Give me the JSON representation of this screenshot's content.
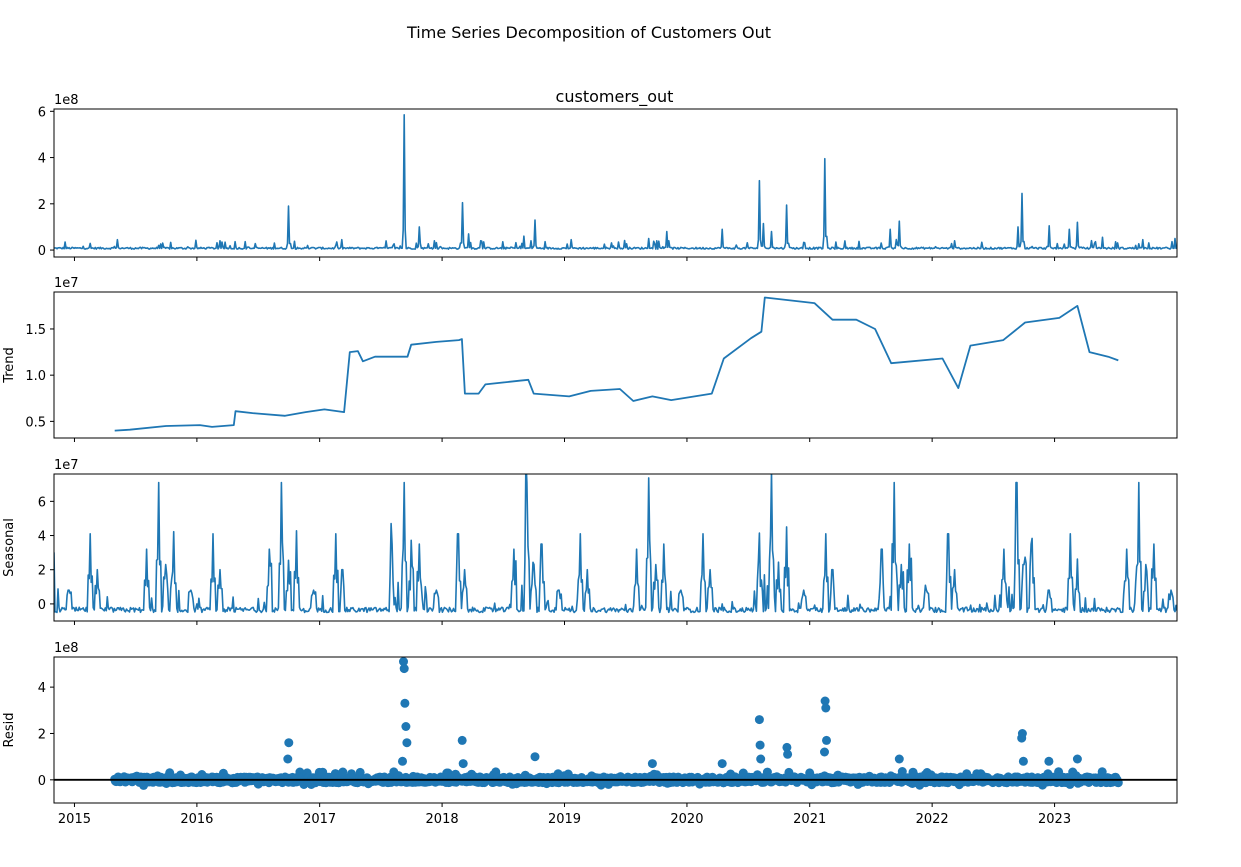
{
  "figure": {
    "suptitle": "Time Series Decomposition of Customers Out"
  },
  "colors": {
    "line": "#1f77b4",
    "axis": "#000000",
    "zero_line": "#000000"
  },
  "chart_data": [
    {
      "type": "line",
      "name": "observed",
      "title": "customers_out",
      "ylabel": "",
      "offset_text": "1e8",
      "scale": 100000000,
      "yticks": [
        0,
        2,
        4,
        6
      ],
      "ylim": [
        -0.3,
        6.1
      ],
      "xlim": [
        "2014-11-01",
        "2024-01-01"
      ],
      "x_start": "2014-11-01",
      "x_end": "2024-01-01",
      "base": 0.04,
      "noise": 0.08,
      "spikes": [
        {
          "x": "2014-12-05",
          "y": 0.35
        },
        {
          "x": "2015-05-10",
          "y": 0.45
        },
        {
          "x": "2015-09-20",
          "y": 0.3
        },
        {
          "x": "2016-03-15",
          "y": 0.35
        },
        {
          "x": "2016-08-20",
          "y": 0.3
        },
        {
          "x": "2016-10-01",
          "y": 1.9
        },
        {
          "x": "2017-02-20",
          "y": 0.35
        },
        {
          "x": "2017-09-10",
          "y": 5.85
        },
        {
          "x": "2017-10-25",
          "y": 1.0
        },
        {
          "x": "2017-12-10",
          "y": 0.4
        },
        {
          "x": "2018-03-02",
          "y": 2.05
        },
        {
          "x": "2018-03-20",
          "y": 0.7
        },
        {
          "x": "2018-04-25",
          "y": 0.4
        },
        {
          "x": "2018-09-01",
          "y": 0.6
        },
        {
          "x": "2018-10-05",
          "y": 1.3
        },
        {
          "x": "2019-01-20",
          "y": 0.45
        },
        {
          "x": "2019-06-10",
          "y": 0.35
        },
        {
          "x": "2019-09-10",
          "y": 0.5
        },
        {
          "x": "2019-11-01",
          "y": 0.8
        },
        {
          "x": "2020-04-15",
          "y": 0.9
        },
        {
          "x": "2020-08-04",
          "y": 3.0
        },
        {
          "x": "2020-08-15",
          "y": 1.15
        },
        {
          "x": "2020-09-10",
          "y": 0.8
        },
        {
          "x": "2020-10-25",
          "y": 1.95
        },
        {
          "x": "2021-02-16",
          "y": 3.95
        },
        {
          "x": "2021-08-28",
          "y": 0.9
        },
        {
          "x": "2021-09-25",
          "y": 1.25
        },
        {
          "x": "2022-03-10",
          "y": 0.4
        },
        {
          "x": "2022-09-27",
          "y": 2.45
        },
        {
          "x": "2022-09-15",
          "y": 1.0
        },
        {
          "x": "2022-12-15",
          "y": 1.05
        },
        {
          "x": "2023-02-15",
          "y": 0.9
        },
        {
          "x": "2023-03-10",
          "y": 1.2
        },
        {
          "x": "2023-05-25",
          "y": 0.55
        },
        {
          "x": "2023-12-25",
          "y": 0.5
        }
      ]
    },
    {
      "type": "line",
      "name": "trend",
      "title": "",
      "ylabel": "Trend",
      "offset_text": "1e7",
      "scale": 10000000,
      "yticks": [
        0.5,
        1.0,
        1.5
      ],
      "ytick_labels": [
        "0.5",
        "1.0",
        "1.5"
      ],
      "ylim": [
        0.32,
        1.9
      ],
      "xlim": [
        "2014-11-01",
        "2024-01-01"
      ],
      "points": [
        {
          "x": "2015-05-01",
          "y": 0.4
        },
        {
          "x": "2015-06-15",
          "y": 0.41
        },
        {
          "x": "2015-10-01",
          "y": 0.45
        },
        {
          "x": "2016-01-10",
          "y": 0.46
        },
        {
          "x": "2016-02-15",
          "y": 0.44
        },
        {
          "x": "2016-04-20",
          "y": 0.46
        },
        {
          "x": "2016-04-25",
          "y": 0.61
        },
        {
          "x": "2016-06-15",
          "y": 0.59
        },
        {
          "x": "2016-09-20",
          "y": 0.56
        },
        {
          "x": "2016-11-20",
          "y": 0.6
        },
        {
          "x": "2017-01-15",
          "y": 0.63
        },
        {
          "x": "2017-03-15",
          "y": 0.6
        },
        {
          "x": "2017-04-01",
          "y": 1.25
        },
        {
          "x": "2017-04-25",
          "y": 1.26
        },
        {
          "x": "2017-05-10",
          "y": 1.15
        },
        {
          "x": "2017-06-15",
          "y": 1.2
        },
        {
          "x": "2017-09-20",
          "y": 1.2
        },
        {
          "x": "2017-10-01",
          "y": 1.33
        },
        {
          "x": "2017-12-15",
          "y": 1.36
        },
        {
          "x": "2018-02-20",
          "y": 1.38
        },
        {
          "x": "2018-03-01",
          "y": 1.39
        },
        {
          "x": "2018-03-10",
          "y": 0.8
        },
        {
          "x": "2018-04-20",
          "y": 0.8
        },
        {
          "x": "2018-05-10",
          "y": 0.9
        },
        {
          "x": "2018-08-20",
          "y": 0.94
        },
        {
          "x": "2018-09-15",
          "y": 0.95
        },
        {
          "x": "2018-10-01",
          "y": 0.8
        },
        {
          "x": "2019-01-15",
          "y": 0.77
        },
        {
          "x": "2019-03-20",
          "y": 0.83
        },
        {
          "x": "2019-06-15",
          "y": 0.85
        },
        {
          "x": "2019-07-25",
          "y": 0.72
        },
        {
          "x": "2019-09-20",
          "y": 0.77
        },
        {
          "x": "2019-11-15",
          "y": 0.73
        },
        {
          "x": "2020-03-15",
          "y": 0.8
        },
        {
          "x": "2020-04-20",
          "y": 1.18
        },
        {
          "x": "2020-07-10",
          "y": 1.4
        },
        {
          "x": "2020-08-10",
          "y": 1.47
        },
        {
          "x": "2020-08-20",
          "y": 1.84
        },
        {
          "x": "2021-01-15",
          "y": 1.78
        },
        {
          "x": "2021-03-10",
          "y": 1.6
        },
        {
          "x": "2021-05-20",
          "y": 1.6
        },
        {
          "x": "2021-07-15",
          "y": 1.5
        },
        {
          "x": "2021-09-01",
          "y": 1.13
        },
        {
          "x": "2022-02-01",
          "y": 1.18
        },
        {
          "x": "2022-03-20",
          "y": 0.86
        },
        {
          "x": "2022-04-25",
          "y": 1.32
        },
        {
          "x": "2022-08-01",
          "y": 1.38
        },
        {
          "x": "2022-10-05",
          "y": 1.57
        },
        {
          "x": "2023-01-15",
          "y": 1.62
        },
        {
          "x": "2023-03-10",
          "y": 1.75
        },
        {
          "x": "2023-04-15",
          "y": 1.25
        },
        {
          "x": "2023-06-10",
          "y": 1.2
        },
        {
          "x": "2023-07-10",
          "y": 1.16
        }
      ]
    },
    {
      "type": "line",
      "name": "seasonal",
      "title": "",
      "ylabel": "Seasonal",
      "offset_text": "1e7",
      "scale": 10000000,
      "yticks": [
        0,
        2,
        4,
        6
      ],
      "ylim": [
        -1.0,
        7.6
      ],
      "xlim": [
        "2014-11-01",
        "2024-01-01"
      ],
      "x_start": "2014-11-01",
      "x_end": "2024-01-01",
      "base": -0.5,
      "noise": 0.3,
      "spikes": [
        {
          "x": "2015-02-18",
          "y": 4.1
        },
        {
          "x": "2015-03-10",
          "y": 2.0
        },
        {
          "x": "2015-08-04",
          "y": 3.2
        },
        {
          "x": "2015-09-10",
          "y": 7.1
        },
        {
          "x": "2015-10-01",
          "y": 2.3
        },
        {
          "x": "2015-10-25",
          "y": 3.5
        },
        {
          "x": "2015-12-15",
          "y": 0.8
        }
      ],
      "season_period_days": 365.25,
      "season_origin": "2015-01-01"
    },
    {
      "type": "scatter",
      "name": "resid",
      "title": "",
      "ylabel": "Resid",
      "offset_text": "1e8",
      "scale": 100000000,
      "yticks": [
        0,
        2,
        4
      ],
      "ylim": [
        -1.0,
        5.3
      ],
      "xlim": [
        "2014-11-01",
        "2024-01-01"
      ],
      "x_start": "2015-05-01",
      "x_end": "2023-07-10",
      "zero_line": true,
      "outliers": [
        {
          "x": "2016-10-01",
          "y": 1.6
        },
        {
          "x": "2016-09-28",
          "y": 0.9
        },
        {
          "x": "2017-09-08",
          "y": 5.1
        },
        {
          "x": "2017-09-10",
          "y": 4.8
        },
        {
          "x": "2017-09-12",
          "y": 3.3
        },
        {
          "x": "2017-09-15",
          "y": 2.3
        },
        {
          "x": "2017-09-18",
          "y": 1.6
        },
        {
          "x": "2017-09-05",
          "y": 0.8
        },
        {
          "x": "2018-03-02",
          "y": 1.7
        },
        {
          "x": "2018-03-05",
          "y": 0.7
        },
        {
          "x": "2018-10-05",
          "y": 1.0
        },
        {
          "x": "2019-09-20",
          "y": 0.7
        },
        {
          "x": "2020-04-15",
          "y": 0.7
        },
        {
          "x": "2020-08-04",
          "y": 2.6
        },
        {
          "x": "2020-08-06",
          "y": 1.5
        },
        {
          "x": "2020-08-08",
          "y": 0.9
        },
        {
          "x": "2020-10-25",
          "y": 1.4
        },
        {
          "x": "2020-10-27",
          "y": 1.1
        },
        {
          "x": "2021-02-16",
          "y": 3.4
        },
        {
          "x": "2021-02-18",
          "y": 3.1
        },
        {
          "x": "2021-02-20",
          "y": 1.7
        },
        {
          "x": "2021-02-14",
          "y": 1.2
        },
        {
          "x": "2021-09-25",
          "y": 0.9
        },
        {
          "x": "2022-09-27",
          "y": 2.0
        },
        {
          "x": "2022-09-25",
          "y": 1.8
        },
        {
          "x": "2022-09-30",
          "y": 0.8
        },
        {
          "x": "2022-12-15",
          "y": 0.8
        },
        {
          "x": "2023-03-10",
          "y": 0.9
        }
      ]
    }
  ],
  "xaxis": {
    "tick_labels": [
      "2015",
      "2016",
      "2017",
      "2018",
      "2019",
      "2020",
      "2021",
      "2022",
      "2023"
    ],
    "tick_values": [
      "2015-01-01",
      "2016-01-01",
      "2017-01-01",
      "2018-01-01",
      "2019-01-01",
      "2020-01-01",
      "2021-01-01",
      "2022-01-01",
      "2023-01-01"
    ]
  }
}
